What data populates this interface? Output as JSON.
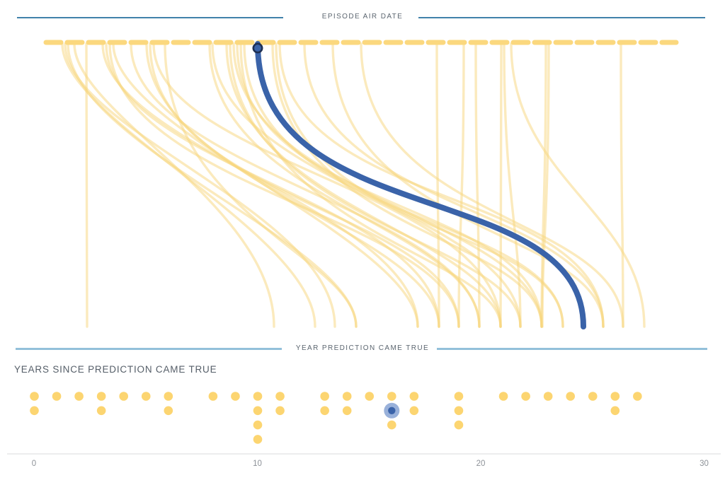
{
  "top_axis": {
    "label": "EPISODE AIR DATE"
  },
  "mid_axis": {
    "label": "YEAR PREDICTION CAME TRUE"
  },
  "dot_section": {
    "title": "YEARS SINCE PREDICTION CAME TRUE"
  },
  "colors": {
    "divider_top": "#4081aa",
    "divider_mid": "#93c0da",
    "curve_yellow": "#f8d67b",
    "dash_yellow": "#fbd87e",
    "accent_blue": "#3a63a9",
    "marker_ring": "#1e2f52",
    "dot_yellow": "#fcd571",
    "highlight_outer": "#8ea9d6",
    "axis_line": "#d9dbdd",
    "tick_gray": "#8d9298"
  },
  "chart_data": [
    {
      "type": "line",
      "title": "Prediction curves from episode air date to year prediction came true",
      "top_axis_label": "EPISODE AIR DATE",
      "bottom_axis_label": "YEAR PREDICTION CAME TRUE",
      "legend": "off",
      "highlighted": {
        "x1": 364,
        "x2": 824,
        "c1": 330,
        "c2": 250
      },
      "curves": [
        {
          "x1": 88,
          "x2": 445,
          "c1": 170,
          "c2": 330
        },
        {
          "x1": 92,
          "x2": 473,
          "c1": 185,
          "c2": 300
        },
        {
          "x1": 96,
          "x2": 503,
          "c1": 205,
          "c2": 345
        },
        {
          "x1": 105,
          "x2": 387,
          "c1": 160,
          "c2": 290
        },
        {
          "x1": 122,
          "x2": 123,
          "c1": 200,
          "c2": 300
        },
        {
          "x1": 145,
          "x2": 590,
          "c1": 205,
          "c2": 300
        },
        {
          "x1": 150,
          "x2": 620,
          "c1": 235,
          "c2": 285
        },
        {
          "x1": 155,
          "x2": 648,
          "c1": 265,
          "c2": 310
        },
        {
          "x1": 160,
          "x2": 590,
          "c1": 185,
          "c2": 340
        },
        {
          "x1": 185,
          "x2": 677,
          "c1": 240,
          "c2": 300
        },
        {
          "x1": 207,
          "x2": 620,
          "c1": 255,
          "c2": 330
        },
        {
          "x1": 212,
          "x2": 648,
          "c1": 285,
          "c2": 300
        },
        {
          "x1": 217,
          "x2": 707,
          "c1": 230,
          "c2": 270
        },
        {
          "x1": 233,
          "x2": 503,
          "c1": 305,
          "c2": 365
        },
        {
          "x1": 296,
          "x2": 677,
          "c1": 285,
          "c2": 320
        },
        {
          "x1": 300,
          "x2": 735,
          "c1": 260,
          "c2": 300
        },
        {
          "x1": 320,
          "x2": 707,
          "c1": 295,
          "c2": 330
        },
        {
          "x1": 325,
          "x2": 735,
          "c1": 315,
          "c2": 340
        },
        {
          "x1": 330,
          "x2": 765,
          "c1": 280,
          "c2": 310
        },
        {
          "x1": 335,
          "x2": 765,
          "c1": 305,
          "c2": 280
        },
        {
          "x1": 340,
          "x2": 707,
          "c1": 330,
          "c2": 360
        },
        {
          "x1": 345,
          "x2": 795,
          "c1": 320,
          "c2": 300
        },
        {
          "x1": 385,
          "x2": 765,
          "c1": 335,
          "c2": 330
        },
        {
          "x1": 390,
          "x2": 795,
          "c1": 345,
          "c2": 310
        },
        {
          "x1": 395,
          "x2": 852,
          "c1": 300,
          "c2": 260
        },
        {
          "x1": 430,
          "x2": 852,
          "c1": 305,
          "c2": 285
        },
        {
          "x1": 470,
          "x2": 852,
          "c1": 335,
          "c2": 320
        },
        {
          "x1": 510,
          "x2": 880,
          "c1": 320,
          "c2": 300
        },
        {
          "x1": 617,
          "x2": 620,
          "c1": 300,
          "c2": 300
        },
        {
          "x1": 655,
          "x2": 648,
          "c1": 300,
          "c2": 310
        },
        {
          "x1": 672,
          "x2": 677,
          "c1": 285,
          "c2": 300
        },
        {
          "x1": 708,
          "x2": 707,
          "c1": 290,
          "c2": 300
        },
        {
          "x1": 712,
          "x2": 735,
          "c1": 285,
          "c2": 320
        },
        {
          "x1": 722,
          "x2": 910,
          "c1": 255,
          "c2": 300
        },
        {
          "x1": 771,
          "x2": 765,
          "c1": 300,
          "c2": 310
        },
        {
          "x1": 775,
          "x2": 766,
          "c1": 320,
          "c2": 330
        },
        {
          "x1": 877,
          "x2": 880,
          "c1": 300,
          "c2": 300
        }
      ]
    },
    {
      "type": "scatter",
      "title": "YEARS SINCE PREDICTION CAME TRUE",
      "xlabel": "Years since prediction came true",
      "xlim": [
        0,
        30
      ],
      "x_ticks": [
        0,
        10,
        20,
        30
      ],
      "counts": [
        {
          "v": 0,
          "n": 2
        },
        {
          "v": 1,
          "n": 1
        },
        {
          "v": 2,
          "n": 1
        },
        {
          "v": 3,
          "n": 2
        },
        {
          "v": 4,
          "n": 1
        },
        {
          "v": 5,
          "n": 1
        },
        {
          "v": 6,
          "n": 2
        },
        {
          "v": 8,
          "n": 1
        },
        {
          "v": 9,
          "n": 1
        },
        {
          "v": 10,
          "n": 4
        },
        {
          "v": 11,
          "n": 2
        },
        {
          "v": 13,
          "n": 2
        },
        {
          "v": 14,
          "n": 2
        },
        {
          "v": 15,
          "n": 1
        },
        {
          "v": 16,
          "n": 3
        },
        {
          "v": 17,
          "n": 2
        },
        {
          "v": 19,
          "n": 3
        },
        {
          "v": 21,
          "n": 1
        },
        {
          "v": 22,
          "n": 1
        },
        {
          "v": 23,
          "n": 1
        },
        {
          "v": 24,
          "n": 1
        },
        {
          "v": 25,
          "n": 1
        },
        {
          "v": 26,
          "n": 2
        },
        {
          "v": 27,
          "n": 1
        }
      ],
      "highlight": {
        "v": 16,
        "row": 1
      }
    }
  ]
}
